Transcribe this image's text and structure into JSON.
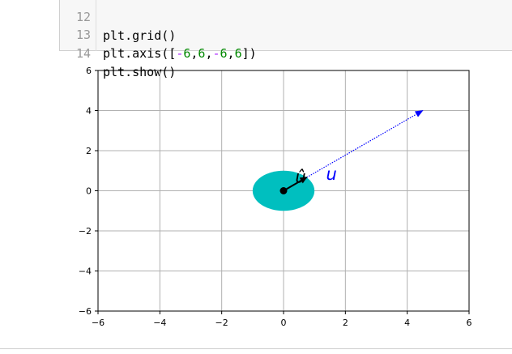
{
  "code": {
    "lines": [
      {
        "no": "12",
        "text": "plt.grid()"
      },
      {
        "no": "13",
        "text": "plt.axis([-6,6,-6,6])"
      },
      {
        "no": "14",
        "text": "plt.show()"
      }
    ]
  },
  "chart_data": {
    "type": "line",
    "xlim": [
      -6,
      6
    ],
    "ylim": [
      -6,
      6
    ],
    "grid": true,
    "x_ticks": [
      -6,
      -4,
      -2,
      0,
      2,
      4,
      6
    ],
    "y_ticks": [
      -6,
      -4,
      -2,
      0,
      2,
      4,
      6
    ],
    "x_tick_labels": [
      "−6",
      "−4",
      "−2",
      "0",
      "2",
      "4",
      "6"
    ],
    "y_tick_labels": [
      "−6",
      "−4",
      "−2",
      "0",
      "2",
      "4",
      "6"
    ],
    "vectors": [
      {
        "label": "u",
        "from": [
          0,
          0
        ],
        "to": [
          4.5,
          4.0
        ],
        "color": "#0000ff",
        "style": "dotted"
      },
      {
        "label": "û",
        "from": [
          0,
          0
        ],
        "to": [
          0.75,
          0.67
        ],
        "color": "#000000",
        "style": "solid"
      }
    ],
    "ellipse": {
      "center": [
        0,
        0
      ],
      "radius_x": 1.0,
      "radius_y": 1.0,
      "color": "#00bfbf"
    },
    "origin_point": [
      0,
      0
    ]
  }
}
